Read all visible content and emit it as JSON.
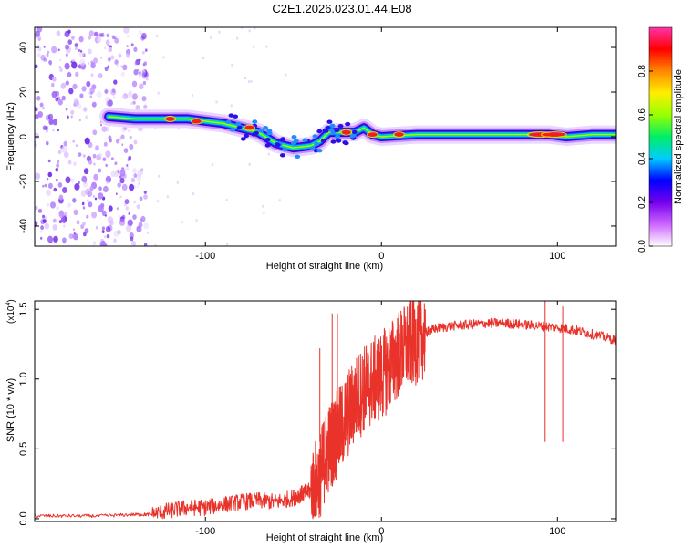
{
  "title": "C2E1.2026.023.01.44.E08",
  "chart_data": [
    {
      "type": "heatmap",
      "title": "C2E1.2026.023.01.44.E08",
      "xlabel": "Height of straight line (km)",
      "ylabel": "Frequency (Hz)",
      "xlim": [
        -197,
        133
      ],
      "ylim": [
        -49,
        49
      ],
      "xticks": [
        -100,
        0,
        100
      ],
      "xtick_labels": [
        "-100",
        "0",
        "100"
      ],
      "yticks": [
        -40,
        -20,
        0,
        20,
        40
      ],
      "ytick_labels": [
        "-40",
        "-20",
        "0",
        "20",
        "40"
      ],
      "colorbar": {
        "label": "Normalized spectral amplitude",
        "range": [
          0,
          1
        ],
        "ticks": [
          0.0,
          0.2,
          0.4,
          0.6,
          0.8
        ],
        "tick_labels": [
          "0.0",
          "0.2",
          "0.4",
          "0.6",
          "0.8"
        ],
        "colors": [
          "#ffffff",
          "#cc66ff",
          "#7700ee",
          "#0000ff",
          "#00ccff",
          "#00ee66",
          "#99ff00",
          "#ffee00",
          "#ff8800",
          "#ff0000",
          "#ff33aa"
        ]
      },
      "ridge": {
        "x": [
          -155,
          -140,
          -125,
          -110,
          -100,
          -90,
          -80,
          -70,
          -60,
          -50,
          -40,
          -35,
          -30,
          -25,
          -20,
          -15,
          -10,
          -5,
          0,
          20,
          40,
          60,
          80,
          95,
          105,
          120,
          133
        ],
        "y": [
          9,
          8,
          8,
          8,
          7,
          6,
          4,
          2,
          -3,
          -5,
          -4,
          -2,
          2,
          2,
          2,
          2,
          4,
          1,
          0,
          1,
          1,
          1,
          1,
          1,
          0,
          1,
          1
        ]
      },
      "noise_region_x": [
        -197,
        -133
      ]
    },
    {
      "type": "line",
      "xlabel": "Height of straight line (km)",
      "ylabel": "SNR (10 * v/v)",
      "multiplier": "(x10",
      "multiplier_exp": "4",
      "multiplier_close": ")",
      "xlim": [
        -197,
        133
      ],
      "ylim": [
        -0.02,
        1.56
      ],
      "xticks": [
        -100,
        0,
        100
      ],
      "xtick_labels": [
        "-100",
        "0",
        "100"
      ],
      "yticks": [
        0.0,
        0.5,
        1.0,
        1.5
      ],
      "ytick_labels": [
        "0.0",
        "0.5",
        "1.0",
        "1.5"
      ],
      "series": [
        {
          "name": "SNR",
          "color": "#e8322a",
          "x": [
            -197,
            -180,
            -160,
            -140,
            -130,
            -120,
            -110,
            -100,
            -90,
            -80,
            -70,
            -60,
            -50,
            -45,
            -40,
            -35,
            -32,
            -28,
            -25,
            -20,
            -15,
            -10,
            -5,
            0,
            5,
            10,
            15,
            20,
            25,
            30,
            40,
            50,
            60,
            70,
            80,
            90,
            100,
            110,
            120,
            133
          ],
          "y": [
            0.02,
            0.02,
            0.02,
            0.03,
            0.03,
            0.06,
            0.08,
            0.08,
            0.1,
            0.12,
            0.13,
            0.12,
            0.15,
            0.18,
            0.2,
            0.3,
            0.45,
            0.55,
            0.6,
            0.72,
            0.85,
            0.93,
            0.98,
            1.02,
            1.1,
            1.18,
            1.24,
            1.28,
            1.33,
            1.36,
            1.38,
            1.39,
            1.4,
            1.4,
            1.39,
            1.38,
            1.37,
            1.35,
            1.32,
            1.28
          ]
        }
      ]
    }
  ]
}
